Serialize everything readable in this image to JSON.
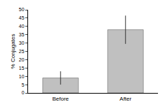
{
  "chart_data": {
    "type": "bar",
    "y_label": "% Conjugates",
    "categories": [
      "Before",
      "After"
    ],
    "values": [
      9,
      38
    ],
    "errors": [
      4,
      8.5
    ],
    "color": "#c0c0c0",
    "ylim": [
      0,
      50
    ],
    "yticks": [
      0,
      5,
      10,
      15,
      20,
      25,
      30,
      35,
      40,
      45,
      50
    ],
    "grid": false
  }
}
